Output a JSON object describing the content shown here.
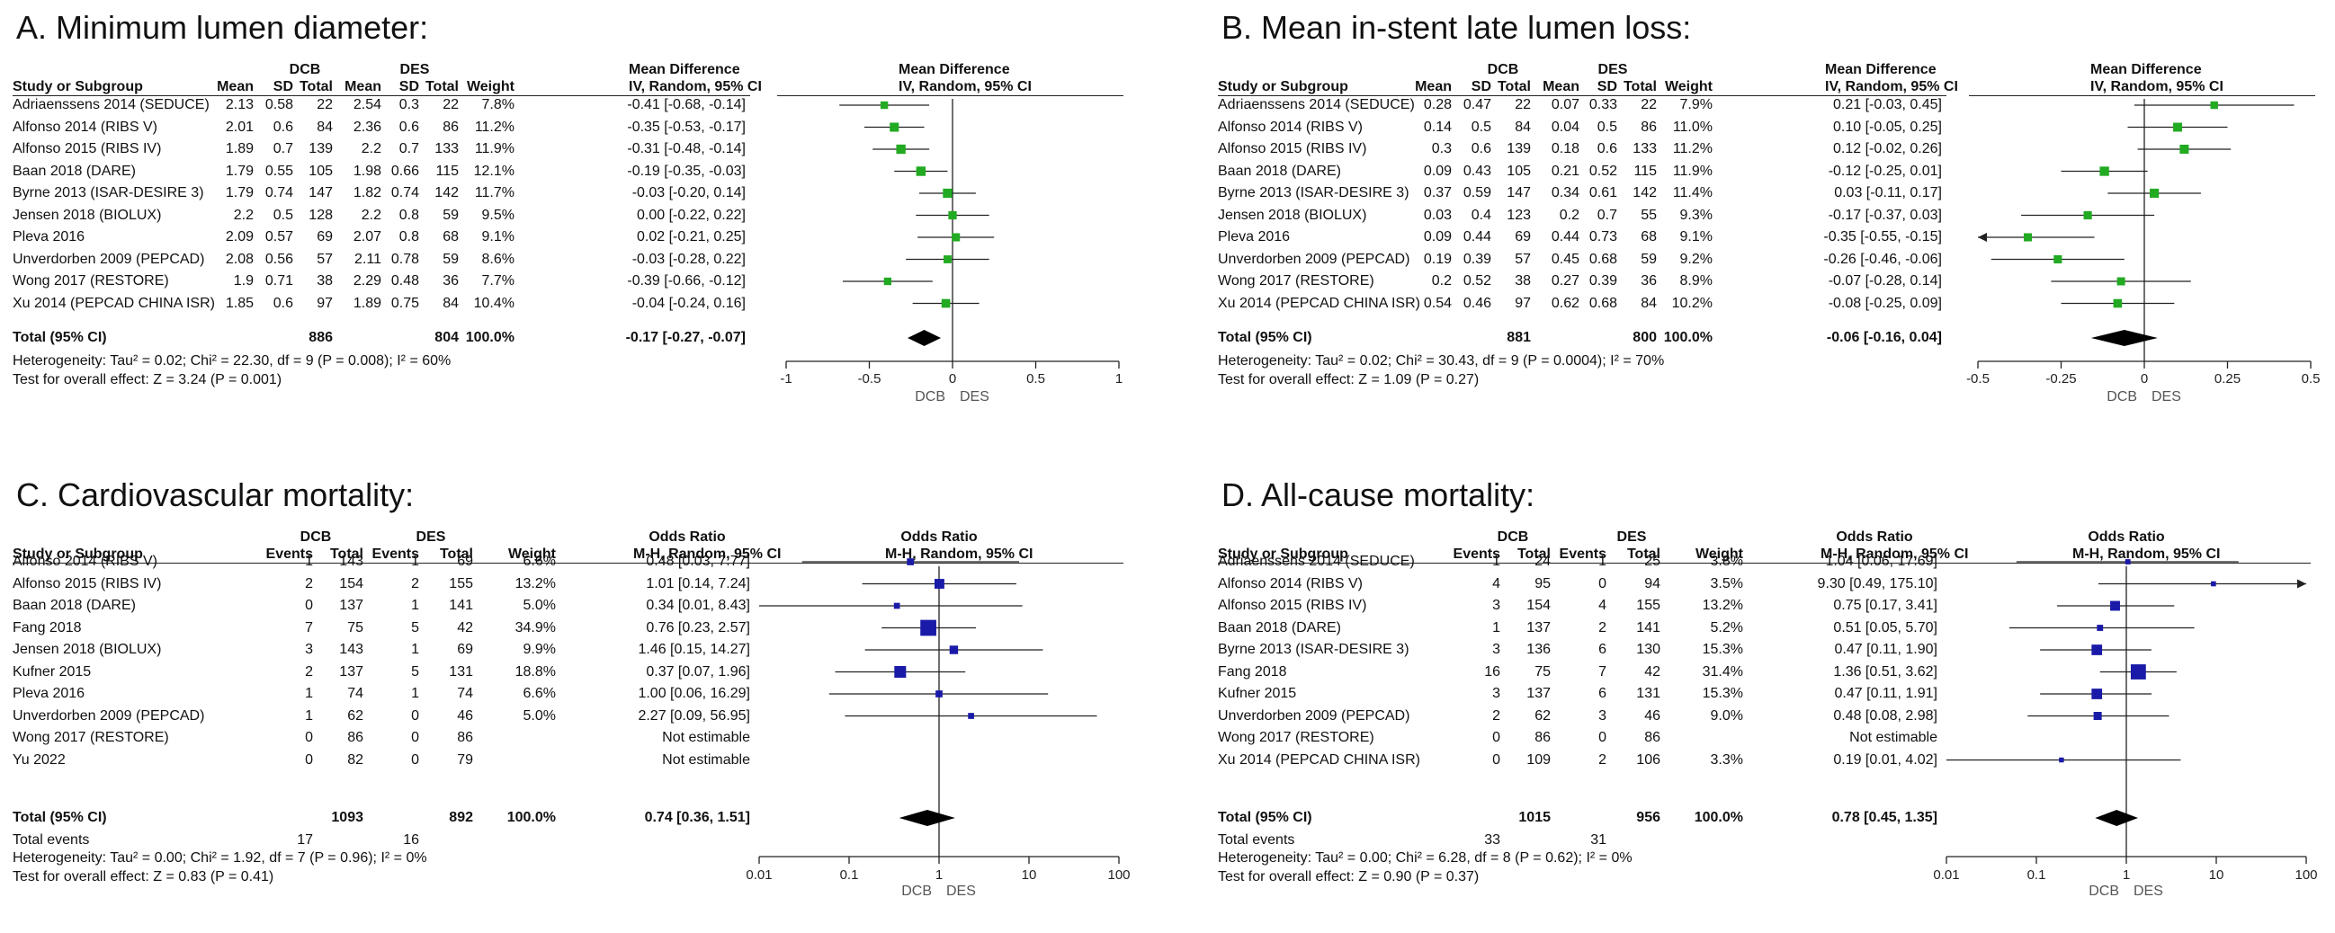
{
  "chart_data": [
    {
      "panel": "A",
      "type": "forest",
      "title": "A. Minimum lumen diameter:",
      "measure": "mean",
      "headers": {
        "group1": "DCB",
        "group2": "DES",
        "cols1": [
          "Mean",
          "SD",
          "Total"
        ],
        "cols2": [
          "Mean",
          "SD",
          "Total"
        ],
        "study": "Study or Subgroup",
        "weight": "Weight",
        "effect_top": "Mean Difference",
        "effect_sub": "IV, Random, 95% CI",
        "plot_top": "Mean Difference",
        "plot_sub": "IV, Random, 95% CI"
      },
      "studies": [
        {
          "name": "Adriaenssens 2014 (SEDUCE)",
          "c1": [
            "2.13",
            "0.58",
            "22"
          ],
          "c2": [
            "2.54",
            "0.3",
            "22"
          ],
          "weight": "7.8%",
          "ci": "-0.41 [-0.68, -0.14]",
          "est": -0.41,
          "lo": -0.68,
          "hi": -0.14
        },
        {
          "name": "Alfonso 2014 (RIBS V)",
          "c1": [
            "2.01",
            "0.6",
            "84"
          ],
          "c2": [
            "2.36",
            "0.6",
            "86"
          ],
          "weight": "11.2%",
          "ci": "-0.35 [-0.53, -0.17]",
          "est": -0.35,
          "lo": -0.53,
          "hi": -0.17
        },
        {
          "name": "Alfonso 2015 (RIBS IV)",
          "c1": [
            "1.89",
            "0.7",
            "139"
          ],
          "c2": [
            "2.2",
            "0.7",
            "133"
          ],
          "weight": "11.9%",
          "ci": "-0.31 [-0.48, -0.14]",
          "est": -0.31,
          "lo": -0.48,
          "hi": -0.14
        },
        {
          "name": "Baan 2018 (DARE)",
          "c1": [
            "1.79",
            "0.55",
            "105"
          ],
          "c2": [
            "1.98",
            "0.66",
            "115"
          ],
          "weight": "12.1%",
          "ci": "-0.19 [-0.35, -0.03]",
          "est": -0.19,
          "lo": -0.35,
          "hi": -0.03
        },
        {
          "name": "Byrne 2013 (ISAR-DESIRE 3)",
          "c1": [
            "1.79",
            "0.74",
            "147"
          ],
          "c2": [
            "1.82",
            "0.74",
            "142"
          ],
          "weight": "11.7%",
          "ci": "-0.03 [-0.20, 0.14]",
          "est": -0.03,
          "lo": -0.2,
          "hi": 0.14
        },
        {
          "name": "Jensen 2018 (BIOLUX)",
          "c1": [
            "2.2",
            "0.5",
            "128"
          ],
          "c2": [
            "2.2",
            "0.8",
            "59"
          ],
          "weight": "9.5%",
          "ci": "0.00 [-0.22, 0.22]",
          "est": 0.0,
          "lo": -0.22,
          "hi": 0.22
        },
        {
          "name": "Pleva 2016",
          "c1": [
            "2.09",
            "0.57",
            "69"
          ],
          "c2": [
            "2.07",
            "0.8",
            "68"
          ],
          "weight": "9.1%",
          "ci": "0.02 [-0.21, 0.25]",
          "est": 0.02,
          "lo": -0.21,
          "hi": 0.25
        },
        {
          "name": "Unverdorben 2009 (PEPCAD)",
          "c1": [
            "2.08",
            "0.56",
            "57"
          ],
          "c2": [
            "2.11",
            "0.78",
            "59"
          ],
          "weight": "8.6%",
          "ci": "-0.03 [-0.28, 0.22]",
          "est": -0.03,
          "lo": -0.28,
          "hi": 0.22
        },
        {
          "name": "Wong 2017 (RESTORE)",
          "c1": [
            "1.9",
            "0.71",
            "38"
          ],
          "c2": [
            "2.29",
            "0.48",
            "36"
          ],
          "weight": "7.7%",
          "ci": "-0.39 [-0.66, -0.12]",
          "est": -0.39,
          "lo": -0.66,
          "hi": -0.12
        },
        {
          "name": "Xu 2014 (PEPCAD CHINA ISR)",
          "c1": [
            "1.85",
            "0.6",
            "97"
          ],
          "c2": [
            "1.89",
            "0.75",
            "84"
          ],
          "weight": "10.4%",
          "ci": "-0.04 [-0.24, 0.16]",
          "est": -0.04,
          "lo": -0.24,
          "hi": 0.16
        }
      ],
      "total": {
        "label": "Total (95% CI)",
        "n1": "886",
        "n2": "804",
        "weight": "100.0%",
        "ci": "-0.17 [-0.27, -0.07]",
        "est": -0.17,
        "lo": -0.27,
        "hi": -0.07
      },
      "total_events": null,
      "heterogeneity": "Heterogeneity: Tau² = 0.02; Chi² = 22.30, df = 9 (P = 0.008); I² = 60%",
      "overall": "Test for overall effect: Z = 3.24 (P = 0.001)",
      "axis": {
        "scale": "linear",
        "min": -1,
        "max": 1,
        "ticks": [
          -1,
          -0.5,
          0,
          0.5,
          1
        ],
        "tick_labels": [
          "-1",
          "-0.5",
          "0",
          "0.5",
          "1"
        ],
        "left_label": "DCB",
        "right_label": "DES"
      },
      "marker_color": "#22aa22"
    },
    {
      "panel": "B",
      "type": "forest",
      "title": "B. Mean in-stent late lumen loss:",
      "measure": "mean",
      "headers": {
        "group1": "DCB",
        "group2": "DES",
        "cols1": [
          "Mean",
          "SD",
          "Total"
        ],
        "cols2": [
          "Mean",
          "SD",
          "Total"
        ],
        "study": "Study or Subgroup",
        "weight": "Weight",
        "effect_top": "Mean Difference",
        "effect_sub": "IV, Random, 95% CI",
        "plot_top": "Mean Difference",
        "plot_sub": "IV, Random, 95% CI"
      },
      "studies": [
        {
          "name": "Adriaenssens 2014 (SEDUCE)",
          "c1": [
            "0.28",
            "0.47",
            "22"
          ],
          "c2": [
            "0.07",
            "0.33",
            "22"
          ],
          "weight": "7.9%",
          "ci": "0.21 [-0.03, 0.45]",
          "est": 0.21,
          "lo": -0.03,
          "hi": 0.45
        },
        {
          "name": "Alfonso 2014 (RIBS V)",
          "c1": [
            "0.14",
            "0.5",
            "84"
          ],
          "c2": [
            "0.04",
            "0.5",
            "86"
          ],
          "weight": "11.0%",
          "ci": "0.10 [-0.05, 0.25]",
          "est": 0.1,
          "lo": -0.05,
          "hi": 0.25
        },
        {
          "name": "Alfonso 2015 (RIBS IV)",
          "c1": [
            "0.3",
            "0.6",
            "139"
          ],
          "c2": [
            "0.18",
            "0.6",
            "133"
          ],
          "weight": "11.2%",
          "ci": "0.12 [-0.02, 0.26]",
          "est": 0.12,
          "lo": -0.02,
          "hi": 0.26
        },
        {
          "name": "Baan 2018 (DARE)",
          "c1": [
            "0.09",
            "0.43",
            "105"
          ],
          "c2": [
            "0.21",
            "0.52",
            "115"
          ],
          "weight": "11.9%",
          "ci": "-0.12 [-0.25, 0.01]",
          "est": -0.12,
          "lo": -0.25,
          "hi": 0.01
        },
        {
          "name": "Byrne 2013 (ISAR-DESIRE 3)",
          "c1": [
            "0.37",
            "0.59",
            "147"
          ],
          "c2": [
            "0.34",
            "0.61",
            "142"
          ],
          "weight": "11.4%",
          "ci": "0.03 [-0.11, 0.17]",
          "est": 0.03,
          "lo": -0.11,
          "hi": 0.17
        },
        {
          "name": "Jensen 2018 (BIOLUX)",
          "c1": [
            "0.03",
            "0.4",
            "123"
          ],
          "c2": [
            "0.2",
            "0.7",
            "55"
          ],
          "weight": "9.3%",
          "ci": "-0.17 [-0.37, 0.03]",
          "est": -0.17,
          "lo": -0.37,
          "hi": 0.03
        },
        {
          "name": "Pleva 2016",
          "c1": [
            "0.09",
            "0.44",
            "69"
          ],
          "c2": [
            "0.44",
            "0.73",
            "68"
          ],
          "weight": "9.1%",
          "ci": "-0.35 [-0.55, -0.15]",
          "est": -0.35,
          "lo": -0.55,
          "hi": -0.15
        },
        {
          "name": "Unverdorben 2009 (PEPCAD)",
          "c1": [
            "0.19",
            "0.39",
            "57"
          ],
          "c2": [
            "0.45",
            "0.68",
            "59"
          ],
          "weight": "9.2%",
          "ci": "-0.26 [-0.46, -0.06]",
          "est": -0.26,
          "lo": -0.46,
          "hi": -0.06
        },
        {
          "name": "Wong 2017 (RESTORE)",
          "c1": [
            "0.2",
            "0.52",
            "38"
          ],
          "c2": [
            "0.27",
            "0.39",
            "36"
          ],
          "weight": "8.9%",
          "ci": "-0.07 [-0.28, 0.14]",
          "est": -0.07,
          "lo": -0.28,
          "hi": 0.14
        },
        {
          "name": "Xu 2014 (PEPCAD CHINA ISR)",
          "c1": [
            "0.54",
            "0.46",
            "97"
          ],
          "c2": [
            "0.62",
            "0.68",
            "84"
          ],
          "weight": "10.2%",
          "ci": "-0.08 [-0.25, 0.09]",
          "est": -0.08,
          "lo": -0.25,
          "hi": 0.09
        }
      ],
      "total": {
        "label": "Total (95% CI)",
        "n1": "881",
        "n2": "800",
        "weight": "100.0%",
        "ci": "-0.06 [-0.16, 0.04]",
        "est": -0.06,
        "lo": -0.16,
        "hi": 0.04
      },
      "total_events": null,
      "heterogeneity": "Heterogeneity: Tau² = 0.02; Chi² = 30.43, df = 9 (P = 0.0004); I² = 70%",
      "overall": "Test for overall effect: Z = 1.09 (P = 0.27)",
      "axis": {
        "scale": "linear",
        "min": -0.5,
        "max": 0.5,
        "ticks": [
          -0.5,
          -0.25,
          0,
          0.25,
          0.5
        ],
        "tick_labels": [
          "-0.5",
          "-0.25",
          "0",
          "0.25",
          "0.5"
        ],
        "left_label": "DCB",
        "right_label": "DES"
      },
      "marker_color": "#22aa22"
    },
    {
      "panel": "C",
      "type": "forest",
      "title": "C. Cardiovascular mortality:",
      "measure": "events",
      "headers": {
        "group1": "DCB",
        "group2": "DES",
        "cols1": [
          "Events",
          "Total"
        ],
        "cols2": [
          "Events",
          "Total"
        ],
        "study": "Study or Subgroup",
        "weight": "Weight",
        "effect_top": "Odds Ratio",
        "effect_sub": "M-H, Random, 95% CI",
        "plot_top": "Odds Ratio",
        "plot_sub": "M-H, Random, 95% CI"
      },
      "studies": [
        {
          "name": "Alfonso 2014 (RIBS V)",
          "c1": [
            "1",
            "143"
          ],
          "c2": [
            "1",
            "69"
          ],
          "weight": "6.6%",
          "ci": "0.48 [0.03, 7.77]",
          "est": 0.48,
          "lo": 0.03,
          "hi": 7.77
        },
        {
          "name": "Alfonso 2015 (RIBS IV)",
          "c1": [
            "2",
            "154"
          ],
          "c2": [
            "2",
            "155"
          ],
          "weight": "13.2%",
          "ci": "1.01 [0.14, 7.24]",
          "est": 1.01,
          "lo": 0.14,
          "hi": 7.24
        },
        {
          "name": "Baan 2018 (DARE)",
          "c1": [
            "0",
            "137"
          ],
          "c2": [
            "1",
            "141"
          ],
          "weight": "5.0%",
          "ci": "0.34 [0.01, 8.43]",
          "est": 0.34,
          "lo": 0.01,
          "hi": 8.43
        },
        {
          "name": "Fang 2018",
          "c1": [
            "7",
            "75"
          ],
          "c2": [
            "5",
            "42"
          ],
          "weight": "34.9%",
          "ci": "0.76 [0.23, 2.57]",
          "est": 0.76,
          "lo": 0.23,
          "hi": 2.57
        },
        {
          "name": "Jensen 2018 (BIOLUX)",
          "c1": [
            "3",
            "143"
          ],
          "c2": [
            "1",
            "69"
          ],
          "weight": "9.9%",
          "ci": "1.46 [0.15, 14.27]",
          "est": 1.46,
          "lo": 0.15,
          "hi": 14.27
        },
        {
          "name": "Kufner 2015",
          "c1": [
            "2",
            "137"
          ],
          "c2": [
            "5",
            "131"
          ],
          "weight": "18.8%",
          "ci": "0.37 [0.07, 1.96]",
          "est": 0.37,
          "lo": 0.07,
          "hi": 1.96
        },
        {
          "name": "Pleva 2016",
          "c1": [
            "1",
            "74"
          ],
          "c2": [
            "1",
            "74"
          ],
          "weight": "6.6%",
          "ci": "1.00 [0.06, 16.29]",
          "est": 1.0,
          "lo": 0.06,
          "hi": 16.29
        },
        {
          "name": "Unverdorben 2009 (PEPCAD)",
          "c1": [
            "1",
            "62"
          ],
          "c2": [
            "0",
            "46"
          ],
          "weight": "5.0%",
          "ci": "2.27 [0.09, 56.95]",
          "est": 2.27,
          "lo": 0.09,
          "hi": 56.95
        },
        {
          "name": "Wong 2017 (RESTORE)",
          "c1": [
            "0",
            "86"
          ],
          "c2": [
            "0",
            "86"
          ],
          "weight": "",
          "ci": "Not estimable",
          "est": null,
          "lo": null,
          "hi": null
        },
        {
          "name": "Yu 2022",
          "c1": [
            "0",
            "82"
          ],
          "c2": [
            "0",
            "79"
          ],
          "weight": "",
          "ci": "Not estimable",
          "est": null,
          "lo": null,
          "hi": null
        }
      ],
      "total": {
        "label": "Total (95% CI)",
        "n1": "1093",
        "n2": "892",
        "weight": "100.0%",
        "ci": "0.74 [0.36, 1.51]",
        "est": 0.74,
        "lo": 0.36,
        "hi": 1.51
      },
      "total_events": {
        "label": "Total events",
        "e1": "17",
        "e2": "16"
      },
      "heterogeneity": "Heterogeneity: Tau² = 0.00; Chi² = 1.92, df = 7 (P = 0.96); I² = 0%",
      "overall": "Test for overall effect: Z = 0.83 (P = 0.41)",
      "axis": {
        "scale": "log",
        "min": 0.01,
        "max": 100,
        "ticks": [
          0.01,
          0.1,
          1,
          10,
          100
        ],
        "tick_labels": [
          "0.01",
          "0.1",
          "1",
          "10",
          "100"
        ],
        "left_label": "DCB",
        "right_label": "DES"
      },
      "marker_color": "#1a1aa8"
    },
    {
      "panel": "D",
      "type": "forest",
      "title": "D. All-cause mortality:",
      "measure": "events",
      "headers": {
        "group1": "DCB",
        "group2": "DES",
        "cols1": [
          "Events",
          "Total"
        ],
        "cols2": [
          "Events",
          "Total"
        ],
        "study": "Study or Subgroup",
        "weight": "Weight",
        "effect_top": "Odds Ratio",
        "effect_sub": "M-H, Random, 95% CI",
        "plot_top": "Odds Ratio",
        "plot_sub": "M-H, Random, 95% CI"
      },
      "studies": [
        {
          "name": "Adriaenssens 2014 (SEDUCE)",
          "c1": [
            "1",
            "24"
          ],
          "c2": [
            "1",
            "25"
          ],
          "weight": "3.8%",
          "ci": "1.04 [0.06, 17.69]",
          "est": 1.04,
          "lo": 0.06,
          "hi": 17.69
        },
        {
          "name": "Alfonso 2014 (RIBS V)",
          "c1": [
            "4",
            "95"
          ],
          "c2": [
            "0",
            "94"
          ],
          "weight": "3.5%",
          "ci": "9.30 [0.49, 175.10]",
          "est": 9.3,
          "lo": 0.49,
          "hi": 175.1
        },
        {
          "name": "Alfonso 2015 (RIBS IV)",
          "c1": [
            "3",
            "154"
          ],
          "c2": [
            "4",
            "155"
          ],
          "weight": "13.2%",
          "ci": "0.75 [0.17, 3.41]",
          "est": 0.75,
          "lo": 0.17,
          "hi": 3.41
        },
        {
          "name": "Baan 2018 (DARE)",
          "c1": [
            "1",
            "137"
          ],
          "c2": [
            "2",
            "141"
          ],
          "weight": "5.2%",
          "ci": "0.51 [0.05, 5.70]",
          "est": 0.51,
          "lo": 0.05,
          "hi": 5.7
        },
        {
          "name": "Byrne 2013 (ISAR-DESIRE 3)",
          "c1": [
            "3",
            "136"
          ],
          "c2": [
            "6",
            "130"
          ],
          "weight": "15.3%",
          "ci": "0.47 [0.11, 1.90]",
          "est": 0.47,
          "lo": 0.11,
          "hi": 1.9
        },
        {
          "name": "Fang 2018",
          "c1": [
            "16",
            "75"
          ],
          "c2": [
            "7",
            "42"
          ],
          "weight": "31.4%",
          "ci": "1.36 [0.51, 3.62]",
          "est": 1.36,
          "lo": 0.51,
          "hi": 3.62
        },
        {
          "name": "Kufner 2015",
          "c1": [
            "3",
            "137"
          ],
          "c2": [
            "6",
            "131"
          ],
          "weight": "15.3%",
          "ci": "0.47 [0.11, 1.91]",
          "est": 0.47,
          "lo": 0.11,
          "hi": 1.91
        },
        {
          "name": "Unverdorben 2009 (PEPCAD)",
          "c1": [
            "2",
            "62"
          ],
          "c2": [
            "3",
            "46"
          ],
          "weight": "9.0%",
          "ci": "0.48 [0.08, 2.98]",
          "est": 0.48,
          "lo": 0.08,
          "hi": 2.98
        },
        {
          "name": "Wong 2017 (RESTORE)",
          "c1": [
            "0",
            "86"
          ],
          "c2": [
            "0",
            "86"
          ],
          "weight": "",
          "ci": "Not estimable",
          "est": null,
          "lo": null,
          "hi": null
        },
        {
          "name": "Xu 2014 (PEPCAD CHINA ISR)",
          "c1": [
            "0",
            "109"
          ],
          "c2": [
            "2",
            "106"
          ],
          "weight": "3.3%",
          "ci": "0.19 [0.01, 4.02]",
          "est": 0.19,
          "lo": 0.01,
          "hi": 4.02
        }
      ],
      "total": {
        "label": "Total (95% CI)",
        "n1": "1015",
        "n2": "956",
        "weight": "100.0%",
        "ci": "0.78 [0.45, 1.35]",
        "est": 0.78,
        "lo": 0.45,
        "hi": 1.35
      },
      "total_events": {
        "label": "Total events",
        "e1": "33",
        "e2": "31"
      },
      "heterogeneity": "Heterogeneity: Tau² = 0.00; Chi² = 6.28, df = 8 (P = 0.62); I² = 0%",
      "overall": "Test for overall effect: Z = 0.90 (P = 0.37)",
      "axis": {
        "scale": "log",
        "min": 0.01,
        "max": 100,
        "ticks": [
          0.01,
          0.1,
          1,
          10,
          100
        ],
        "tick_labels": [
          "0.01",
          "0.1",
          "1",
          "10",
          "100"
        ],
        "left_label": "DCB",
        "right_label": "DES"
      },
      "marker_color": "#1a1aa8"
    }
  ]
}
